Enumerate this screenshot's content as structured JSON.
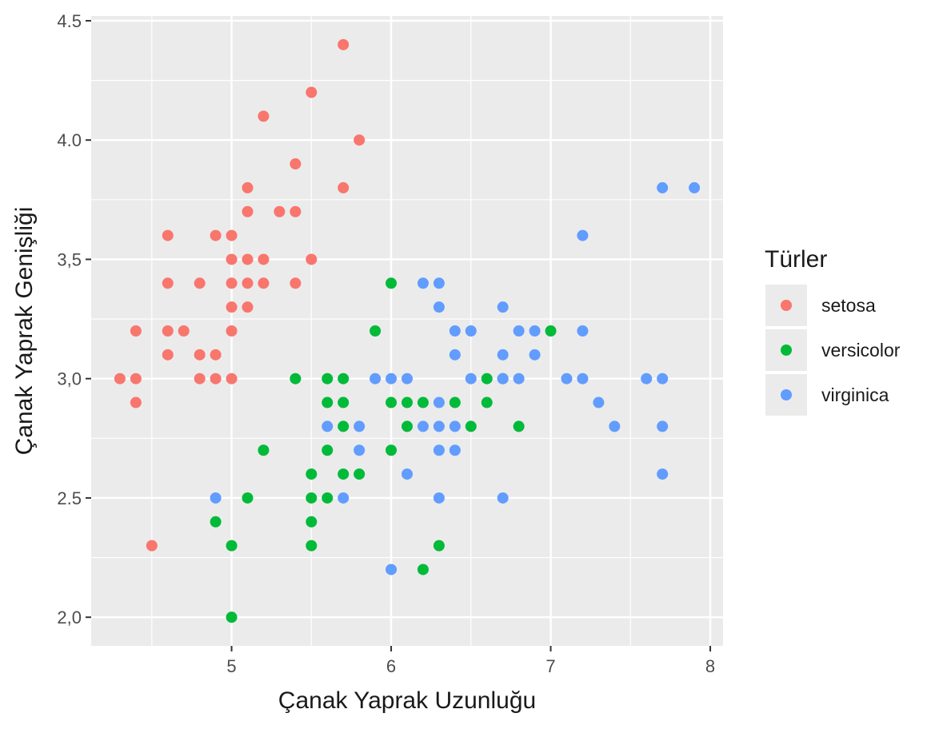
{
  "chart_data": {
    "type": "scatter",
    "title": "",
    "xlabel": "Çanak Yaprak Uzunluğu",
    "ylabel": "Çanak Yaprak Genişliği",
    "xlim": [
      4.12,
      8.08
    ],
    "ylim": [
      1.88,
      4.52
    ],
    "x_ticks": [
      5,
      6,
      7,
      8
    ],
    "x_tick_labels": [
      "5",
      "6",
      "7",
      "8"
    ],
    "y_ticks": [
      2.0,
      2.5,
      3.0,
      3.5,
      4.0,
      4.5
    ],
    "y_tick_labels": [
      "2,0",
      "2.5",
      "3,0",
      "3,5",
      "4.0",
      "4.5"
    ],
    "grid": true,
    "legend": {
      "title": "Türler",
      "position": "right"
    },
    "series": [
      {
        "name": "setosa",
        "color": "#F8766D",
        "points": [
          [
            5.7,
            4.4
          ],
          [
            5.5,
            4.2
          ],
          [
            5.2,
            4.1
          ],
          [
            5.8,
            4.0
          ],
          [
            5.4,
            3.9
          ],
          [
            5.1,
            3.8
          ],
          [
            5.7,
            3.8
          ],
          [
            5.1,
            3.7
          ],
          [
            5.3,
            3.7
          ],
          [
            5.4,
            3.7
          ],
          [
            4.6,
            3.6
          ],
          [
            4.9,
            3.6
          ],
          [
            5.0,
            3.6
          ],
          [
            5.0,
            3.5
          ],
          [
            5.1,
            3.5
          ],
          [
            5.2,
            3.5
          ],
          [
            5.5,
            3.5
          ],
          [
            4.6,
            3.4
          ],
          [
            4.8,
            3.4
          ],
          [
            5.0,
            3.4
          ],
          [
            5.1,
            3.4
          ],
          [
            5.2,
            3.4
          ],
          [
            5.4,
            3.4
          ],
          [
            5.0,
            3.3
          ],
          [
            5.1,
            3.3
          ],
          [
            4.4,
            3.2
          ],
          [
            4.6,
            3.2
          ],
          [
            4.7,
            3.2
          ],
          [
            5.0,
            3.2
          ],
          [
            4.6,
            3.1
          ],
          [
            4.8,
            3.1
          ],
          [
            4.9,
            3.1
          ],
          [
            4.3,
            3.0
          ],
          [
            4.4,
            3.0
          ],
          [
            4.8,
            3.0
          ],
          [
            4.9,
            3.0
          ],
          [
            5.0,
            3.0
          ],
          [
            4.4,
            2.9
          ],
          [
            4.5,
            2.3
          ]
        ]
      },
      {
        "name": "versicolor",
        "color": "#00BA38",
        "points": [
          [
            6.0,
            3.4
          ],
          [
            5.9,
            3.2
          ],
          [
            7.0,
            3.2
          ],
          [
            5.4,
            3.0
          ],
          [
            5.6,
            3.0
          ],
          [
            5.7,
            3.0
          ],
          [
            6.6,
            3.0
          ],
          [
            6.7,
            3.0
          ],
          [
            5.6,
            2.9
          ],
          [
            5.7,
            2.9
          ],
          [
            6.0,
            2.9
          ],
          [
            6.1,
            2.9
          ],
          [
            6.2,
            2.9
          ],
          [
            6.4,
            2.9
          ],
          [
            6.6,
            2.9
          ],
          [
            5.7,
            2.8
          ],
          [
            6.1,
            2.8
          ],
          [
            6.5,
            2.8
          ],
          [
            6.8,
            2.8
          ],
          [
            5.2,
            2.7
          ],
          [
            5.6,
            2.7
          ],
          [
            6.0,
            2.7
          ],
          [
            5.5,
            2.6
          ],
          [
            5.7,
            2.6
          ],
          [
            5.8,
            2.6
          ],
          [
            5.1,
            2.5
          ],
          [
            5.5,
            2.5
          ],
          [
            5.6,
            2.5
          ],
          [
            4.9,
            2.4
          ],
          [
            5.5,
            2.4
          ],
          [
            5.0,
            2.3
          ],
          [
            5.5,
            2.3
          ],
          [
            6.3,
            2.3
          ],
          [
            6.2,
            2.2
          ],
          [
            5.0,
            2.0
          ]
        ]
      },
      {
        "name": "virginica",
        "color": "#619CFF",
        "points": [
          [
            7.7,
            3.8
          ],
          [
            7.9,
            3.8
          ],
          [
            7.2,
            3.6
          ],
          [
            6.2,
            3.4
          ],
          [
            6.3,
            3.4
          ],
          [
            6.3,
            3.3
          ],
          [
            6.7,
            3.3
          ],
          [
            6.4,
            3.2
          ],
          [
            6.5,
            3.2
          ],
          [
            6.8,
            3.2
          ],
          [
            6.9,
            3.2
          ],
          [
            7.2,
            3.2
          ],
          [
            6.4,
            3.1
          ],
          [
            6.7,
            3.1
          ],
          [
            6.9,
            3.1
          ],
          [
            5.9,
            3.0
          ],
          [
            6.0,
            3.0
          ],
          [
            6.1,
            3.0
          ],
          [
            6.5,
            3.0
          ],
          [
            6.7,
            3.0
          ],
          [
            6.8,
            3.0
          ],
          [
            7.1,
            3.0
          ],
          [
            7.2,
            3.0
          ],
          [
            7.6,
            3.0
          ],
          [
            7.7,
            3.0
          ],
          [
            6.3,
            2.9
          ],
          [
            7.3,
            2.9
          ],
          [
            5.6,
            2.8
          ],
          [
            5.8,
            2.8
          ],
          [
            6.2,
            2.8
          ],
          [
            6.3,
            2.8
          ],
          [
            6.4,
            2.8
          ],
          [
            7.4,
            2.8
          ],
          [
            7.7,
            2.8
          ],
          [
            5.8,
            2.7
          ],
          [
            6.3,
            2.7
          ],
          [
            6.4,
            2.7
          ],
          [
            6.1,
            2.6
          ],
          [
            7.7,
            2.6
          ],
          [
            4.9,
            2.5
          ],
          [
            5.7,
            2.5
          ],
          [
            6.3,
            2.5
          ],
          [
            6.7,
            2.5
          ],
          [
            6.0,
            2.2
          ]
        ]
      }
    ]
  }
}
